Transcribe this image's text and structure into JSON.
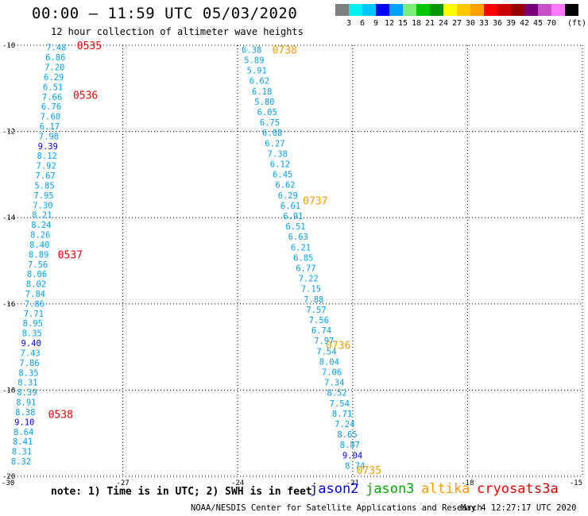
{
  "header": {
    "title": "00:00 – 11:59 UTC 05/03/2020",
    "subtitle": "12 hour collection of altimeter wave heights"
  },
  "colorbar": {
    "colors": [
      "#7f7f7f",
      "#00f0f0",
      "#00c8ff",
      "#0000ff",
      "#00a0ff",
      "#78f078",
      "#00c800",
      "#009600",
      "#ffff00",
      "#ffc800",
      "#ffa000",
      "#ff0000",
      "#c80000",
      "#960000",
      "#780078",
      "#c850c8",
      "#ff78ff",
      "#000000"
    ],
    "labels": [
      "3",
      "6",
      "9",
      "12",
      "15",
      "18",
      "21",
      "24",
      "27",
      "30",
      "33",
      "36",
      "39",
      "42",
      "45",
      "70"
    ],
    "unit_label": "(ft)"
  },
  "chart_data": {
    "type": "map",
    "xlim": [
      -30,
      -15
    ],
    "ylim": [
      -20,
      -10
    ],
    "x_ticks": [
      -30,
      -27,
      -24,
      -21,
      -18,
      -15
    ],
    "y_ticks": [
      -10,
      -12,
      -14,
      -16,
      -18,
      -20
    ],
    "x_tick_labels": [
      "-30",
      "-27",
      "-24",
      "-21",
      "-18",
      "-15"
    ],
    "y_tick_labels": [
      "-10",
      "-12",
      "-14",
      "-16",
      "-18",
      "-20"
    ],
    "grid": true,
    "tracks": [
      {
        "color": "#00a0ff",
        "x_start": -29.0,
        "x_end": -29.92,
        "y_start": -10.05,
        "y_end": -19.65,
        "values": [
          "7.48",
          "6.86",
          "7.20",
          "6.29",
          "6.51",
          "7.66",
          "6.76",
          "7.60",
          "6.17",
          "7.98",
          "9.39",
          "8.12",
          "7.92",
          "7.67",
          "5.85",
          "7.95",
          "7.30",
          "8.21",
          "8.24",
          "8.26",
          "8.40",
          "8.89",
          "7.56",
          "8.06",
          "8.02",
          "7.84",
          "7.86",
          "7.71",
          "8.95",
          "8.35",
          "9.40",
          "7.43",
          "7.86",
          "8.35",
          "8.31",
          "8.39",
          "8.91",
          "8.38",
          "9.10",
          "8.64",
          "8.41",
          "8.31",
          "8.32"
        ],
        "value_colors": {
          "9.39": "#0000ff",
          "9.40": "#0000ff",
          "9.10": "#0000ff"
        },
        "time_labels": [
          {
            "text": "0535",
            "lat": -10.0,
            "lon": -28.2
          },
          {
            "text": "0536",
            "lat": -11.15,
            "lon": -28.3
          },
          {
            "text": "0537",
            "lat": -14.85,
            "lon": -28.7
          },
          {
            "text": "0538",
            "lat": -18.55,
            "lon": -28.95
          }
        ],
        "time_color": "#ff0000"
      },
      {
        "color": "#00a0ff",
        "x_start": -23.9,
        "x_end": -21.2,
        "y_start": -10.1,
        "y_end": -19.75,
        "values": [
          "6.38",
          "5.89",
          "5.91",
          "6.62",
          "6.18",
          "5.80",
          "6.05",
          "6.75",
          "6.08",
          "6.27",
          "7.38",
          "6.12",
          "6.45",
          "6.62",
          "6.29",
          "6.61",
          "6.91",
          "6.51",
          "6.63",
          "6.21",
          "6.85",
          "6.77",
          "7.22",
          "7.15",
          "7.88",
          "7.57",
          "7.56",
          "6.74",
          "7.97",
          "7.54",
          "8.04",
          "7.06",
          "7.34",
          "8.52",
          "7.54",
          "8.71",
          "7.24",
          "8.65",
          "8.87",
          "9.04",
          "8.74"
        ],
        "value_colors": {
          "9.04": "#0000ff"
        },
        "time_labels": [
          {
            "text": "0738",
            "lat": -10.1,
            "lon": -23.1
          },
          {
            "text": "0737",
            "lat": -13.6,
            "lon": -22.3
          },
          {
            "text": "0736",
            "lat": -16.95,
            "lon": -21.7
          },
          {
            "text": "0735",
            "lat": -19.85,
            "lon": -20.9
          }
        ],
        "time_color": "#ff9900"
      }
    ]
  },
  "footer": {
    "note": "note: 1) Time is in UTC; 2) SWH is in feet",
    "legend": [
      {
        "name": "jason2",
        "color": "#0000ff"
      },
      {
        "name": "jason3",
        "color": "#00aa00"
      },
      {
        "name": "altika",
        "color": "#ff9900"
      },
      {
        "name": "cryosat",
        "color": "#ff0000"
      },
      {
        "name": "s3a",
        "color": "#dd0000"
      }
    ],
    "credit": "NOAA/NESDIS Center for Satellite Applications and Research",
    "timestamp": "May  4 12:27:17 UTC 2020"
  }
}
